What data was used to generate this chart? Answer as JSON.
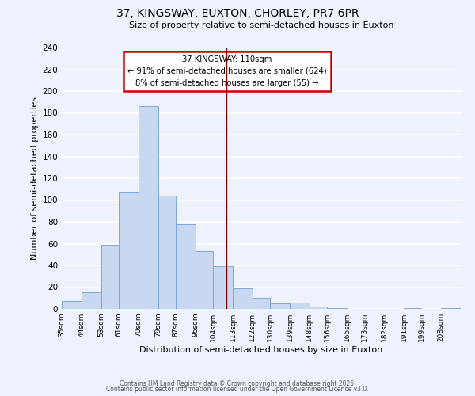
{
  "title": "37, KINGSWAY, EUXTON, CHORLEY, PR7 6PR",
  "subtitle": "Size of property relative to semi-detached houses in Euxton",
  "xlabel": "Distribution of semi-detached houses by size in Euxton",
  "ylabel": "Number of semi-detached properties",
  "bin_labels": [
    "35sqm",
    "44sqm",
    "53sqm",
    "61sqm",
    "70sqm",
    "79sqm",
    "87sqm",
    "96sqm",
    "104sqm",
    "113sqm",
    "122sqm",
    "130sqm",
    "139sqm",
    "148sqm",
    "156sqm",
    "165sqm",
    "173sqm",
    "182sqm",
    "191sqm",
    "199sqm",
    "208sqm"
  ],
  "bin_edges": [
    35,
    44,
    53,
    61,
    70,
    79,
    87,
    96,
    104,
    113,
    122,
    130,
    139,
    148,
    156,
    165,
    173,
    182,
    191,
    199,
    208,
    217
  ],
  "bar_heights": [
    7,
    15,
    59,
    107,
    186,
    104,
    78,
    53,
    39,
    19,
    10,
    5,
    6,
    2,
    1,
    0,
    0,
    0,
    1,
    0,
    1
  ],
  "bar_face_color": "#c8d8f0",
  "bar_edge_color": "#7aa8d8",
  "vline_x": 110,
  "vline_color": "#880000",
  "annotation_title": "37 KINGSWAY: 110sqm",
  "annotation_line1": "← 91% of semi-detached houses are smaller (624)",
  "annotation_line2": "8% of semi-detached houses are larger (55) →",
  "annotation_box_edgecolor": "#cc0000",
  "ylim": [
    0,
    240
  ],
  "yticks": [
    0,
    20,
    40,
    60,
    80,
    100,
    120,
    140,
    160,
    180,
    200,
    220,
    240
  ],
  "footnote1": "Contains HM Land Registry data © Crown copyright and database right 2025.",
  "footnote2": "Contains public sector information licensed under the Open Government Licence v3.0.",
  "bg_color": "#eef2fc",
  "grid_color": "#ffffff"
}
